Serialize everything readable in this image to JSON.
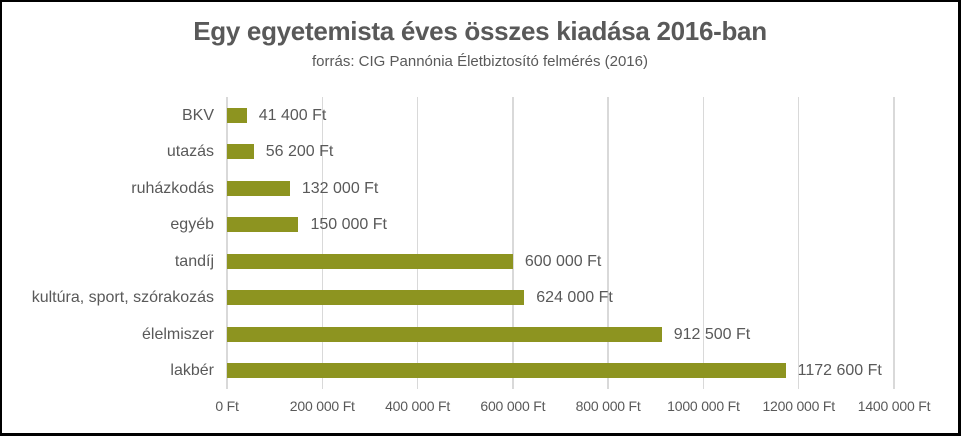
{
  "frame": {
    "background": "#FFFFFF",
    "border_color": "#000000"
  },
  "chart_data": {
    "type": "bar",
    "orientation": "horizontal",
    "title": "Egy egyetemista éves összes kiadása 2016-ban",
    "subtitle": "forrás: CIG Pannónia Életbiztosító felmérés (2016)",
    "categories": [
      "BKV",
      "utazás",
      "ruházkodás",
      "egyéb",
      "tandíj",
      "kultúra, sport, szórakozás",
      "élelmiszer",
      "lakbér"
    ],
    "values": [
      41400,
      56200,
      132000,
      150000,
      600000,
      624000,
      912500,
      1172600
    ],
    "value_labels": [
      "41 400 Ft",
      "56 200 Ft",
      "132 000 Ft",
      "150 000 Ft",
      "600 000 Ft",
      "624 000 Ft",
      "912 500 Ft",
      "1172 600 Ft"
    ],
    "unit": "Ft",
    "xlim": [
      0,
      1400000
    ],
    "x_ticks": [
      0,
      200000,
      400000,
      600000,
      800000,
      1000000,
      1200000,
      1400000
    ],
    "x_tick_labels": [
      "0 Ft",
      "200 000 Ft",
      "400 000 Ft",
      "600 000 Ft",
      "800 000 Ft",
      "1000 000 Ft",
      "1200 000 Ft",
      "1400 000 Ft"
    ],
    "grid": true,
    "legend": false,
    "bar_color": "#8D9420",
    "gridline_color": "#D9D9D9",
    "text_color": "#595959",
    "title_color": "#595959"
  }
}
